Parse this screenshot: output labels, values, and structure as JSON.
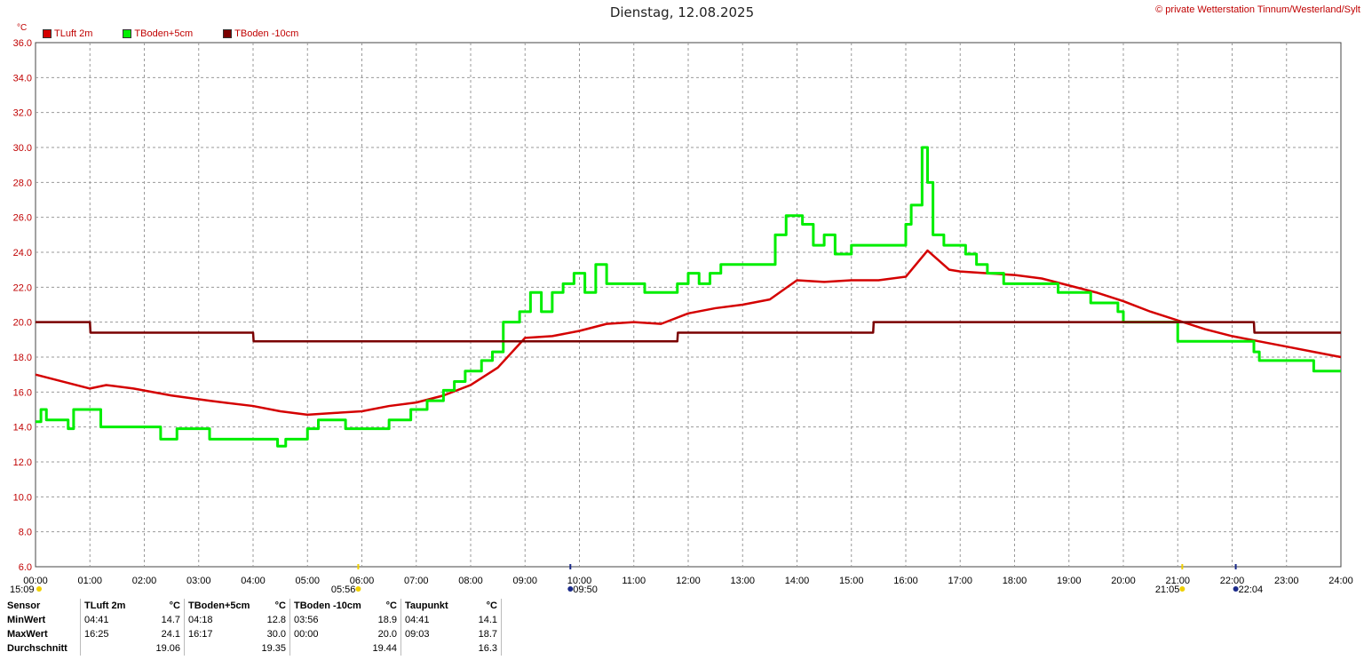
{
  "header": {
    "title": "Dienstag, 12.08.2025",
    "copyright": "© private Wetterstation Tinnum/Westerland/Sylt"
  },
  "unit": "°C",
  "colors": {
    "tluft": "#d40000",
    "tboden5": "#00ee00",
    "tboden10": "#7a0000",
    "grid": "#999999",
    "axisText": "#c00000"
  },
  "sun_markers": {
    "sunrise": "05:56",
    "sunset": "21:05",
    "moon_set": "09:50",
    "moon_rise": "22:04",
    "day_start": "15:09"
  },
  "chart_data": {
    "type": "line",
    "x_unit": "hours",
    "xlim": [
      0,
      24
    ],
    "ylim": [
      6,
      36
    ],
    "y_ticks": [
      6,
      8,
      10,
      12,
      14,
      16,
      18,
      20,
      22,
      24,
      26,
      28,
      30,
      32,
      34,
      36
    ],
    "x_tick_labels": [
      "00:00",
      "01:00",
      "02:00",
      "03:00",
      "04:00",
      "05:00",
      "06:00",
      "07:00",
      "08:00",
      "09:00",
      "10:00",
      "11:00",
      "12:00",
      "13:00",
      "14:00",
      "15:00",
      "16:00",
      "17:00",
      "18:00",
      "19:00",
      "20:00",
      "21:00",
      "22:00",
      "23:00",
      "24:00"
    ],
    "grid": true,
    "legend_position": "top-left",
    "series": [
      {
        "key": "tluft",
        "name": "TLuft 2m",
        "x": [
          0,
          0.5,
          1,
          1.3,
          1.8,
          2.5,
          3.2,
          4,
          4.5,
          5,
          5.5,
          6,
          6.5,
          7,
          7.5,
          8,
          8.5,
          9,
          9.5,
          10,
          10.5,
          11,
          11.5,
          12,
          12.5,
          13,
          13.5,
          14,
          14.5,
          15,
          15.5,
          16,
          16.4,
          16.8,
          17,
          17.5,
          18,
          18.5,
          19,
          19.5,
          20,
          20.5,
          21,
          21.5,
          22,
          22.5,
          23,
          23.5,
          24
        ],
        "y": [
          17.0,
          16.6,
          16.2,
          16.4,
          16.2,
          15.8,
          15.5,
          15.2,
          14.9,
          14.7,
          14.8,
          14.9,
          15.2,
          15.4,
          15.8,
          16.4,
          17.4,
          19.1,
          19.2,
          19.5,
          19.9,
          20.0,
          19.9,
          20.5,
          20.8,
          21.0,
          21.3,
          22.4,
          22.3,
          22.4,
          22.4,
          22.6,
          24.1,
          23.0,
          22.9,
          22.8,
          22.7,
          22.5,
          22.1,
          21.7,
          21.2,
          20.6,
          20.1,
          19.6,
          19.2,
          18.9,
          18.6,
          18.3,
          18.0
        ]
      },
      {
        "key": "tboden5",
        "name": "TBoden+5cm",
        "x": [
          0,
          0.1,
          0.2,
          0.5,
          0.6,
          0.7,
          1.2,
          1.8,
          2.3,
          2.6,
          3.2,
          4.3,
          4.45,
          4.6,
          5.0,
          5.2,
          5.7,
          6.5,
          6.9,
          7.2,
          7.5,
          7.7,
          7.9,
          8.2,
          8.4,
          8.6,
          8.9,
          9.1,
          9.3,
          9.5,
          9.7,
          9.9,
          10.1,
          10.3,
          10.5,
          10.8,
          11.2,
          11.5,
          11.8,
          12.0,
          12.2,
          12.4,
          12.6,
          13.3,
          13.6,
          13.8,
          14.1,
          14.3,
          14.5,
          14.7,
          15.0,
          15.2,
          15.6,
          16.0,
          16.1,
          16.3,
          16.4,
          16.5,
          16.7,
          17.0,
          17.1,
          17.3,
          17.5,
          17.8,
          18.2,
          18.8,
          19.4,
          19.9,
          20.0,
          20.6,
          21.0,
          21.6,
          22.4,
          22.5,
          23.0,
          23.5,
          24
        ],
        "y": [
          14.3,
          15.0,
          14.4,
          14.4,
          13.9,
          15.0,
          14.0,
          14.0,
          13.3,
          13.9,
          13.3,
          13.3,
          12.9,
          13.3,
          13.9,
          14.4,
          13.9,
          14.4,
          15.0,
          15.5,
          16.1,
          16.6,
          17.2,
          17.8,
          18.3,
          20.0,
          20.6,
          21.7,
          20.6,
          21.7,
          22.2,
          22.8,
          21.7,
          23.3,
          22.2,
          22.2,
          21.7,
          21.7,
          22.2,
          22.8,
          22.2,
          22.8,
          23.3,
          23.3,
          25.0,
          26.1,
          25.6,
          24.4,
          25.0,
          23.9,
          24.4,
          24.4,
          24.4,
          25.6,
          26.7,
          30.0,
          28.0,
          25.0,
          24.4,
          24.4,
          23.9,
          23.3,
          22.8,
          22.2,
          22.2,
          21.7,
          21.1,
          20.6,
          20.0,
          20.0,
          18.9,
          18.9,
          18.3,
          17.8,
          17.8,
          17.2,
          17.2
        ]
      },
      {
        "key": "tboden10",
        "name": "TBoden -10cm",
        "x": [
          0,
          1.0,
          1.01,
          4.0,
          4.01,
          11.8,
          11.81,
          15.4,
          15.41,
          22.4,
          22.41,
          24
        ],
        "y": [
          20.0,
          20.0,
          19.4,
          19.4,
          18.9,
          18.9,
          19.4,
          19.4,
          20.0,
          20.0,
          19.4,
          19.4
        ]
      }
    ]
  },
  "stats_table": {
    "headers": [
      "Sensor",
      "TLuft 2m",
      "°C",
      "TBoden+5cm",
      "°C",
      "TBoden -10cm",
      "°C",
      "Taupunkt",
      "°C"
    ],
    "rows": [
      {
        "label": "MinWert",
        "tl_time": "04:41",
        "tl_val": "14.7",
        "t5_time": "04:18",
        "t5_val": "12.8",
        "t10_time": "03:56",
        "t10_val": "18.9",
        "tp_time": "04:41",
        "tp_val": "14.1"
      },
      {
        "label": "MaxWert",
        "tl_time": "16:25",
        "tl_val": "24.1",
        "t5_time": "16:17",
        "t5_val": "30.0",
        "t10_time": "00:00",
        "t10_val": "20.0",
        "tp_time": "09:03",
        "tp_val": "18.7"
      },
      {
        "label": "Durchschnitt",
        "tl_time": "",
        "tl_val": "19.06",
        "t5_time": "",
        "t5_val": "19.35",
        "t10_time": "",
        "t10_val": "19.44",
        "tp_time": "",
        "tp_val": "16.3"
      }
    ]
  }
}
